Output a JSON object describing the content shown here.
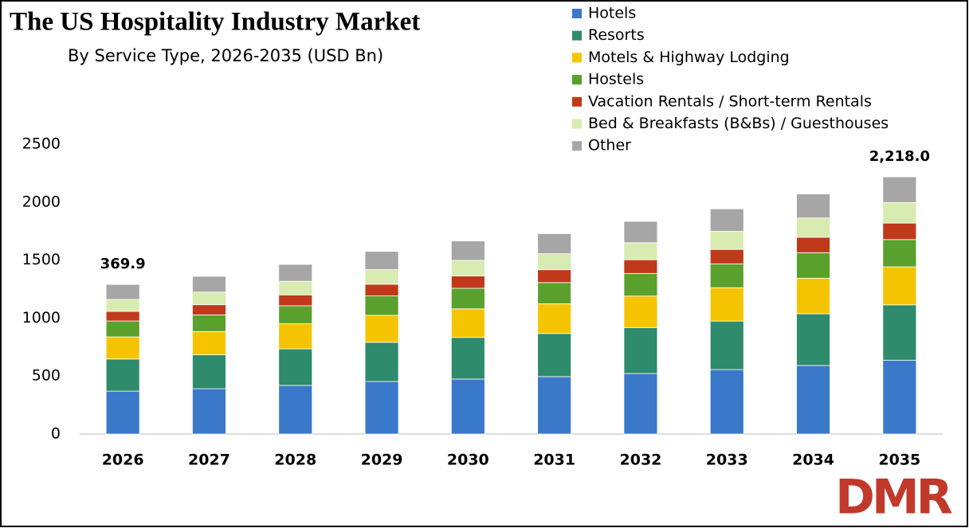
{
  "chart_data": {
    "type": "stacked_bar",
    "title": "The US Hospitality Industry Market",
    "subtitle": "By Service Type, 2026-2035 (USD Bn)",
    "categories": [
      "2026",
      "2027",
      "2028",
      "2029",
      "2030",
      "2031",
      "2032",
      "2033",
      "2034",
      "2035"
    ],
    "series": [
      {
        "name": "Hotels",
        "color": "#3a78c9",
        "values": [
          369.9,
          391,
          419,
          453,
          474,
          495,
          522,
          556,
          591,
          637
        ]
      },
      {
        "name": "Resorts",
        "color": "#2e8b6b",
        "values": [
          277,
          292,
          315,
          338,
          359,
          372,
          396,
          418,
          446,
          477
        ]
      },
      {
        "name": "Motels & Highway Lodging",
        "color": "#f5c400",
        "values": [
          191,
          201,
          217,
          233,
          247,
          256,
          272,
          288,
          307,
          328
        ]
      },
      {
        "name": "Hostels",
        "color": "#5aa02c",
        "values": [
          137,
          144,
          155,
          167,
          177,
          183,
          195,
          206,
          220,
          235
        ]
      },
      {
        "name": "Vacation Rentals / Short-term Rentals",
        "color": "#c0391b",
        "values": [
          83,
          87,
          94,
          101,
          107,
          111,
          118,
          124,
          133,
          142
        ]
      },
      {
        "name": "Bed & Breakfasts (B&Bs) / Guesthouses",
        "color": "#d8ebb0",
        "values": [
          103,
          109,
          117,
          126,
          134,
          138,
          147,
          156,
          166,
          177
        ]
      },
      {
        "name": "Other",
        "color": "#a6a6a6",
        "values": [
          129,
          136,
          146,
          157,
          167,
          173,
          184,
          194,
          207,
          222
        ]
      }
    ],
    "annotations": [
      {
        "text": "369.9",
        "category": 0
      },
      {
        "text": "2,218.0",
        "category": 9
      }
    ],
    "ylim": [
      0,
      2500
    ],
    "yticks": [
      0,
      500,
      1000,
      1500,
      2000,
      2500
    ],
    "grid": false,
    "logo": "DMR"
  }
}
